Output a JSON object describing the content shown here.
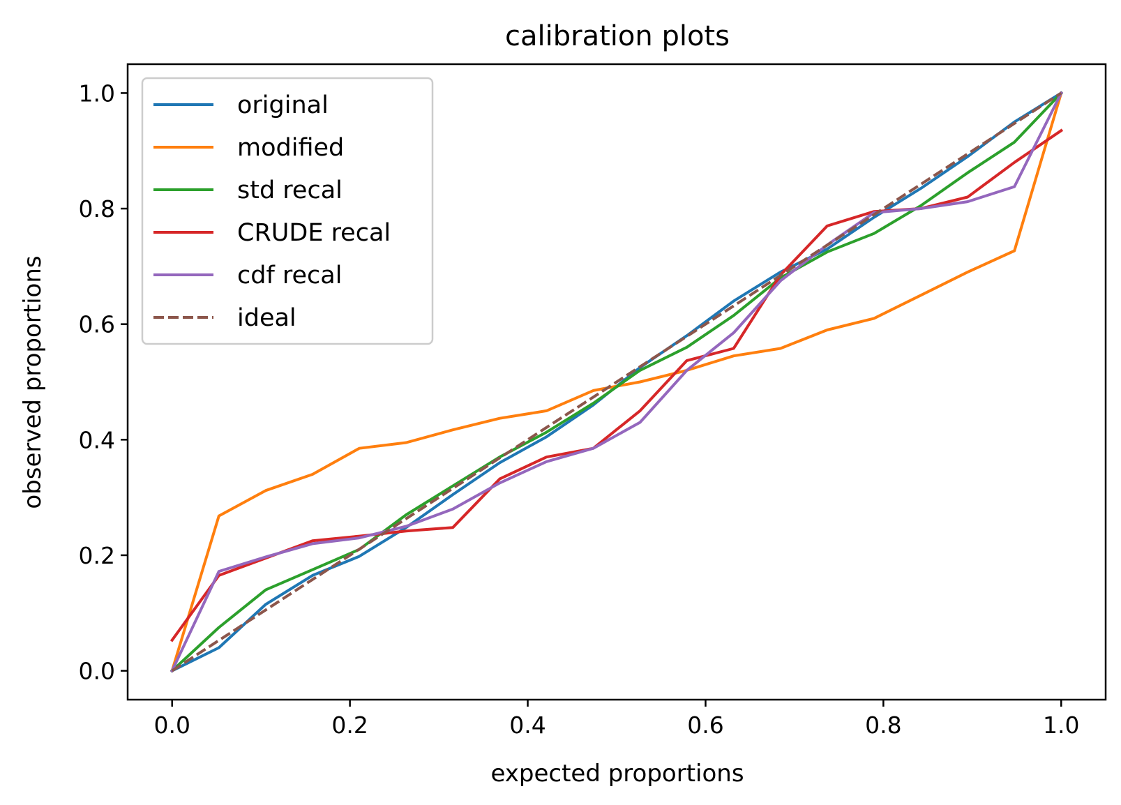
{
  "chart_data": {
    "type": "line",
    "title": "calibration plots",
    "xlabel": "expected proportions",
    "ylabel": "observed proportions",
    "xlim": [
      -0.05,
      1.05
    ],
    "ylim": [
      -0.05,
      1.05
    ],
    "xticks": [
      0.0,
      0.2,
      0.4,
      0.6,
      0.8,
      1.0
    ],
    "xtick_labels": [
      "0.0",
      "0.2",
      "0.4",
      "0.6",
      "0.8",
      "1.0"
    ],
    "yticks": [
      0.0,
      0.2,
      0.4,
      0.6,
      0.8,
      1.0
    ],
    "ytick_labels": [
      "0.0",
      "0.2",
      "0.4",
      "0.6",
      "0.8",
      "1.0"
    ],
    "grid": false,
    "legend_position": "upper-left",
    "x": [
      0.0,
      0.0526,
      0.1053,
      0.1579,
      0.2105,
      0.2632,
      0.3158,
      0.3684,
      0.4211,
      0.4737,
      0.5263,
      0.5789,
      0.6316,
      0.6842,
      0.7368,
      0.7895,
      0.8421,
      0.8947,
      0.9474,
      1.0
    ],
    "series": [
      {
        "name": "original",
        "color": "#1f77b4",
        "dash": "solid",
        "values": [
          0.0,
          0.04,
          0.115,
          0.165,
          0.198,
          0.248,
          0.305,
          0.36,
          0.405,
          0.46,
          0.525,
          0.58,
          0.64,
          0.69,
          0.73,
          0.785,
          0.835,
          0.89,
          0.95,
          1.0
        ]
      },
      {
        "name": "modified",
        "color": "#ff7f0e",
        "dash": "solid",
        "values": [
          0.0,
          0.268,
          0.312,
          0.34,
          0.385,
          0.395,
          0.417,
          0.437,
          0.45,
          0.485,
          0.5,
          0.52,
          0.545,
          0.558,
          0.59,
          0.61,
          0.65,
          0.69,
          0.727,
          1.0
        ]
      },
      {
        "name": "std recal",
        "color": "#2ca02c",
        "dash": "solid",
        "values": [
          0.0,
          0.075,
          0.14,
          0.175,
          0.21,
          0.27,
          0.32,
          0.37,
          0.413,
          0.463,
          0.52,
          0.56,
          0.615,
          0.68,
          0.725,
          0.757,
          0.805,
          0.862,
          0.915,
          1.0
        ]
      },
      {
        "name": "CRUDE recal",
        "color": "#d62728",
        "dash": "solid",
        "values": [
          0.053,
          0.165,
          0.195,
          0.225,
          0.233,
          0.242,
          0.248,
          0.332,
          0.37,
          0.385,
          0.45,
          0.537,
          0.558,
          0.685,
          0.77,
          0.795,
          0.8,
          0.82,
          0.88,
          0.935
        ]
      },
      {
        "name": "cdf recal",
        "color": "#9467bd",
        "dash": "solid",
        "values": [
          0.0,
          0.172,
          0.197,
          0.22,
          0.23,
          0.25,
          0.28,
          0.325,
          0.362,
          0.385,
          0.43,
          0.52,
          0.585,
          0.675,
          0.737,
          0.793,
          0.8,
          0.812,
          0.838,
          1.0
        ]
      },
      {
        "name": "ideal",
        "color": "#8c564b",
        "dash": "dashed",
        "values": [
          0.0,
          0.0526,
          0.1053,
          0.1579,
          0.2105,
          0.2632,
          0.3158,
          0.3684,
          0.4211,
          0.4737,
          0.5263,
          0.5789,
          0.6316,
          0.6842,
          0.7368,
          0.7895,
          0.8421,
          0.8947,
          0.9474,
          1.0
        ]
      }
    ]
  }
}
